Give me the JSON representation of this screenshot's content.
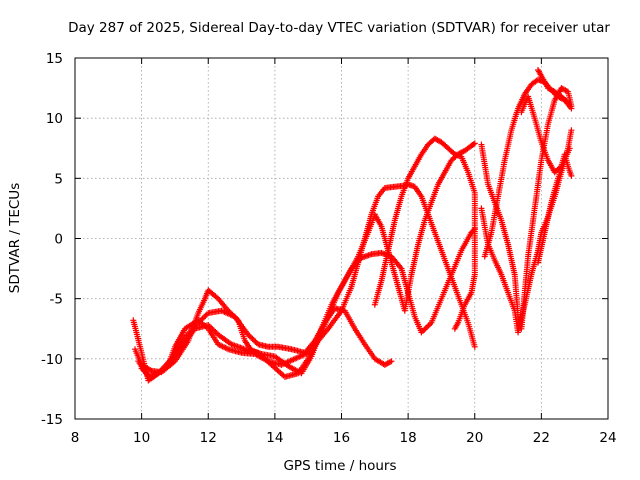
{
  "chart_data": {
    "type": "scatter",
    "title": "Day 287 of 2025, Sidereal Day-to-day VTEC variation (SDTVAR) for receiver utar",
    "xlabel": "GPS time / hours",
    "ylabel": "SDTVAR / TECUs",
    "xlim": [
      8,
      24
    ],
    "ylim": [
      -15,
      15
    ],
    "xticks": [
      8,
      10,
      12,
      14,
      16,
      18,
      20,
      22,
      24
    ],
    "yticks": [
      -15,
      -10,
      -5,
      0,
      5,
      10,
      15
    ],
    "grid": true,
    "marker": "+",
    "color": "#ff0000",
    "series": [
      {
        "name": "track-1",
        "points": [
          [
            9.75,
            -6.8
          ],
          [
            10.0,
            -9.5
          ],
          [
            10.2,
            -11.8
          ],
          [
            10.5,
            -11.2
          ],
          [
            10.8,
            -10.5
          ],
          [
            11.0,
            -9.0
          ],
          [
            11.3,
            -7.5
          ],
          [
            11.7,
            -6.8
          ],
          [
            12.0,
            -7.5
          ],
          [
            12.3,
            -8.8
          ],
          [
            12.6,
            -9.2
          ],
          [
            13.0,
            -9.5
          ],
          [
            13.4,
            -9.6
          ],
          [
            13.8,
            -10.2
          ],
          [
            14.2,
            -10.5
          ],
          [
            14.6,
            -10.0
          ],
          [
            15.0,
            -9.5
          ],
          [
            15.3,
            -8.5
          ],
          [
            15.6,
            -7.5
          ],
          [
            16.0,
            -6.0
          ],
          [
            16.3,
            -4.0
          ],
          [
            16.5,
            -2.0
          ],
          [
            16.7,
            0.0
          ],
          [
            16.9,
            2.0
          ],
          [
            17.1,
            3.5
          ],
          [
            17.3,
            4.2
          ],
          [
            17.6,
            4.3
          ],
          [
            17.9,
            4.4
          ],
          [
            18.0,
            4.5
          ],
          [
            18.2,
            4.3
          ],
          [
            18.4,
            3.5
          ],
          [
            18.6,
            2.0
          ],
          [
            18.8,
            0.5
          ],
          [
            19.0,
            -1.0
          ],
          [
            19.2,
            -2.5
          ],
          [
            19.4,
            -4.0
          ],
          [
            19.6,
            -5.5
          ],
          [
            19.8,
            -7.0
          ],
          [
            20.0,
            -9.0
          ]
        ]
      },
      {
        "name": "track-2",
        "points": [
          [
            9.8,
            -9.2
          ],
          [
            10.0,
            -10.5
          ],
          [
            10.3,
            -11.0
          ],
          [
            10.6,
            -11.1
          ],
          [
            11.0,
            -10.2
          ],
          [
            11.4,
            -8.5
          ],
          [
            11.7,
            -6.2
          ],
          [
            11.9,
            -5.0
          ],
          [
            12.0,
            -4.3
          ],
          [
            12.3,
            -5.0
          ],
          [
            12.6,
            -6.0
          ],
          [
            12.9,
            -6.8
          ],
          [
            13.1,
            -8.5
          ],
          [
            13.3,
            -9.3
          ],
          [
            13.6,
            -9.6
          ],
          [
            14.0,
            -9.8
          ],
          [
            14.4,
            -10.6
          ],
          [
            14.8,
            -11.2
          ],
          [
            15.1,
            -9.8
          ],
          [
            15.4,
            -7.5
          ],
          [
            15.7,
            -5.5
          ],
          [
            16.0,
            -4.0
          ],
          [
            16.3,
            -2.5
          ],
          [
            16.6,
            -1.6
          ],
          [
            16.9,
            -1.3
          ],
          [
            17.2,
            -1.2
          ],
          [
            17.5,
            -1.5
          ],
          [
            17.8,
            -2.5
          ],
          [
            18.0,
            -4.5
          ],
          [
            18.2,
            -6.5
          ],
          [
            18.4,
            -7.8
          ],
          [
            18.7,
            -7.0
          ],
          [
            19.0,
            -5.0
          ],
          [
            19.3,
            -3.0
          ],
          [
            19.6,
            -1.0
          ],
          [
            19.9,
            0.5
          ],
          [
            20.0,
            0.8
          ]
        ]
      },
      {
        "name": "track-3",
        "points": [
          [
            9.9,
            -10.2
          ],
          [
            10.2,
            -11.5
          ],
          [
            10.5,
            -11.2
          ],
          [
            10.9,
            -10.0
          ],
          [
            11.3,
            -8.2
          ],
          [
            11.7,
            -7.0
          ],
          [
            12.0,
            -6.2
          ],
          [
            12.4,
            -6.0
          ],
          [
            12.8,
            -6.5
          ],
          [
            13.2,
            -8.0
          ],
          [
            13.5,
            -8.8
          ],
          [
            13.8,
            -9.0
          ],
          [
            14.1,
            -9.0
          ],
          [
            14.5,
            -9.2
          ],
          [
            14.9,
            -9.5
          ],
          [
            15.2,
            -8.5
          ],
          [
            15.5,
            -7.0
          ],
          [
            15.8,
            -5.8
          ],
          [
            16.1,
            -6.0
          ],
          [
            16.4,
            -7.5
          ],
          [
            16.7,
            -8.8
          ],
          [
            17.0,
            -10.0
          ],
          [
            17.3,
            -10.5
          ],
          [
            17.5,
            -10.2
          ]
        ]
      },
      {
        "name": "track-4",
        "points": [
          [
            10.0,
            -10.8
          ],
          [
            10.3,
            -11.6
          ],
          [
            10.7,
            -10.8
          ],
          [
            11.2,
            -9.0
          ],
          [
            11.6,
            -7.5
          ],
          [
            12.0,
            -7.2
          ],
          [
            12.3,
            -8.0
          ],
          [
            12.7,
            -8.8
          ],
          [
            13.1,
            -9.2
          ],
          [
            13.5,
            -9.5
          ],
          [
            13.9,
            -10.5
          ],
          [
            14.3,
            -11.5
          ],
          [
            14.7,
            -11.2
          ],
          [
            15.0,
            -10.0
          ],
          [
            15.3,
            -8.5
          ],
          [
            15.6,
            -6.5
          ],
          [
            15.9,
            -4.5
          ],
          [
            16.2,
            -3.0
          ],
          [
            16.5,
            -1.5
          ],
          [
            16.8,
            0.5
          ],
          [
            17.0,
            2.0
          ],
          [
            17.2,
            1.0
          ],
          [
            17.4,
            -1.0
          ],
          [
            17.6,
            -3.0
          ],
          [
            17.8,
            -5.0
          ],
          [
            17.9,
            -6.0
          ],
          [
            18.1,
            -3.0
          ],
          [
            18.3,
            -0.5
          ],
          [
            18.5,
            1.5
          ],
          [
            18.7,
            3.0
          ],
          [
            18.9,
            4.5
          ],
          [
            19.1,
            5.5
          ],
          [
            19.3,
            6.5
          ],
          [
            19.5,
            7.0
          ],
          [
            19.7,
            7.3
          ],
          [
            19.9,
            7.7
          ],
          [
            20.0,
            7.9
          ]
        ]
      },
      {
        "name": "track-5",
        "points": [
          [
            17.0,
            -5.5
          ],
          [
            17.2,
            -3.5
          ],
          [
            17.4,
            -1.0
          ],
          [
            17.6,
            1.5
          ],
          [
            17.8,
            3.5
          ],
          [
            18.0,
            5.0
          ],
          [
            18.2,
            6.0
          ],
          [
            18.4,
            7.0
          ],
          [
            18.6,
            7.8
          ],
          [
            18.8,
            8.3
          ],
          [
            19.0,
            8.0
          ],
          [
            19.2,
            7.5
          ],
          [
            19.4,
            7.0
          ],
          [
            19.6,
            6.8
          ],
          [
            19.8,
            5.5
          ],
          [
            20.0,
            3.8
          ],
          [
            20.0,
            -0.5
          ],
          [
            20.0,
            -3.0
          ],
          [
            19.9,
            -4.5
          ],
          [
            19.7,
            -5.5
          ],
          [
            19.5,
            -7.0
          ],
          [
            19.4,
            -7.5
          ]
        ]
      },
      {
        "name": "track-6",
        "points": [
          [
            20.2,
            7.8
          ],
          [
            20.4,
            4.5
          ],
          [
            20.6,
            3.0
          ],
          [
            20.8,
            1.5
          ],
          [
            21.0,
            -0.5
          ],
          [
            21.2,
            -3.0
          ],
          [
            21.3,
            -6.5
          ],
          [
            21.4,
            -7.5
          ],
          [
            21.5,
            -4.5
          ],
          [
            21.6,
            -1.5
          ],
          [
            21.8,
            2.5
          ],
          [
            22.0,
            6.5
          ],
          [
            22.2,
            9.5
          ],
          [
            22.4,
            11.5
          ],
          [
            22.6,
            12.5
          ],
          [
            22.8,
            12.2
          ],
          [
            22.9,
            11.0
          ]
        ]
      },
      {
        "name": "track-7",
        "points": [
          [
            20.3,
            -1.5
          ],
          [
            20.5,
            0.5
          ],
          [
            20.7,
            3.5
          ],
          [
            20.9,
            6.5
          ],
          [
            21.1,
            9.0
          ],
          [
            21.3,
            10.8
          ],
          [
            21.5,
            12.0
          ],
          [
            21.7,
            12.8
          ],
          [
            21.9,
            13.2
          ],
          [
            22.1,
            13.0
          ],
          [
            22.3,
            12.3
          ],
          [
            22.5,
            11.8
          ],
          [
            22.7,
            11.5
          ],
          [
            22.9,
            10.8
          ]
        ]
      },
      {
        "name": "track-8",
        "points": [
          [
            20.2,
            2.5
          ],
          [
            20.4,
            -0.5
          ],
          [
            20.6,
            -1.8
          ],
          [
            20.8,
            -3.0
          ],
          [
            21.0,
            -4.5
          ],
          [
            21.2,
            -6.0
          ],
          [
            21.3,
            -7.8
          ],
          [
            21.5,
            -5.5
          ],
          [
            21.7,
            -3.0
          ],
          [
            21.9,
            -1.0
          ],
          [
            22.0,
            0.5
          ],
          [
            22.2,
            1.8
          ],
          [
            22.4,
            3.5
          ],
          [
            22.6,
            5.5
          ],
          [
            22.8,
            7.5
          ],
          [
            22.9,
            9.0
          ]
        ]
      },
      {
        "name": "track-9",
        "points": [
          [
            21.4,
            10.5
          ],
          [
            21.6,
            11.8
          ],
          [
            21.8,
            10.0
          ],
          [
            22.0,
            8.0
          ],
          [
            22.2,
            6.5
          ],
          [
            22.4,
            5.5
          ],
          [
            22.6,
            6.0
          ],
          [
            22.7,
            7.0
          ],
          [
            22.8,
            6.0
          ],
          [
            22.9,
            5.2
          ]
        ]
      },
      {
        "name": "track-10",
        "points": [
          [
            21.9,
            -2.0
          ],
          [
            22.1,
            0.5
          ],
          [
            22.3,
            3.0
          ],
          [
            22.5,
            5.0
          ],
          [
            22.7,
            6.5
          ],
          [
            22.85,
            7.5
          ]
        ]
      },
      {
        "name": "track-11",
        "points": [
          [
            21.9,
            14.0
          ],
          [
            22.0,
            13.5
          ],
          [
            22.2,
            12.5
          ],
          [
            22.4,
            12.2
          ],
          [
            22.6,
            11.8
          ],
          [
            22.8,
            11.3
          ]
        ]
      }
    ]
  }
}
